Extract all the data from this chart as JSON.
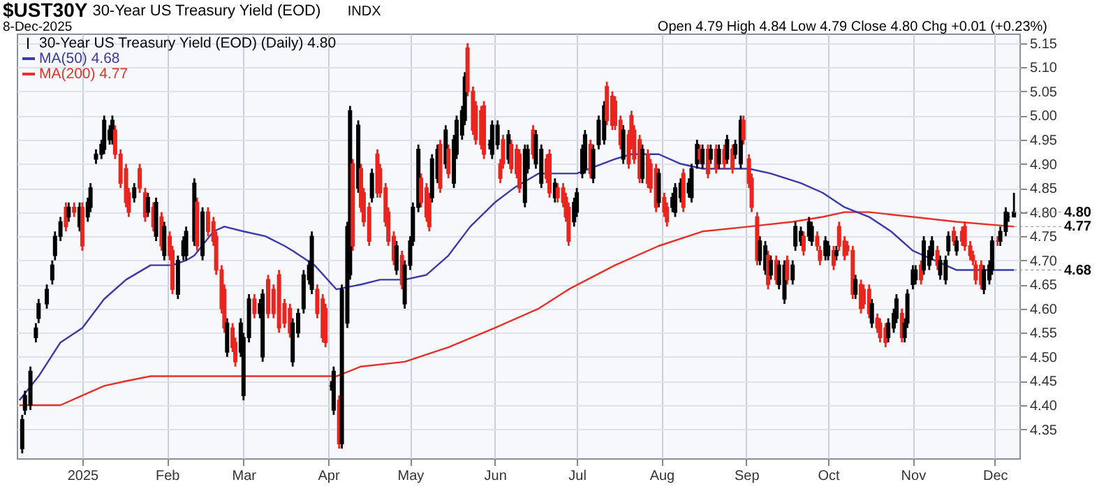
{
  "chart_data": {
    "type": "candlestick",
    "title": "$UST30Y",
    "subtitle": "30-Year US Treasury Yield (EOD)",
    "annotations": [
      "INDX",
      "8-Dec-2025",
      "Open 4.79 High 4.84 Low 4.79 Close 4.80 Chg +0.01 (+0.23%)",
      {
        "text": "4.80",
        "x": "2025-12-08",
        "y": 4.8
      },
      {
        "text": "4.77",
        "x": "2025-12-08",
        "y": 4.77
      },
      {
        "text": "4.68",
        "x": "2025-12-08",
        "y": 4.68
      }
    ],
    "xlim": [
      "2024-12-08",
      "2025-12-10"
    ],
    "xticks": [
      {
        "value": "2025-01-01",
        "label": "2025"
      },
      {
        "value": "2025-02-01",
        "label": "Feb"
      },
      {
        "value": "2025-03-01",
        "label": "Mar"
      },
      {
        "value": "2025-04-01",
        "label": "Apr"
      },
      {
        "value": "2025-05-01",
        "label": "May"
      },
      {
        "value": "2025-06-01",
        "label": "Jun"
      },
      {
        "value": "2025-07-01",
        "label": "Jul"
      },
      {
        "value": "2025-08-01",
        "label": "Aug"
      },
      {
        "value": "2025-09-01",
        "label": "Sep"
      },
      {
        "value": "2025-10-01",
        "label": "Oct"
      },
      {
        "value": "2025-11-01",
        "label": "Nov"
      },
      {
        "value": "2025-12-01",
        "label": "Dec"
      }
    ],
    "ylim": [
      4.29,
      5.17
    ],
    "yticks": [
      4.35,
      {
        "value": 4.4,
        "label": "4.40"
      },
      4.45,
      {
        "value": 4.5,
        "label": "4.50"
      },
      4.55,
      {
        "value": 4.6,
        "label": "4.60"
      },
      4.65,
      {
        "value": 4.7,
        "label": "4.70"
      },
      4.75,
      {
        "value": 4.8,
        "label": "4.80"
      },
      4.85,
      {
        "value": 4.9,
        "label": "4.90"
      },
      4.95,
      {
        "value": 5.0,
        "label": "5.00"
      },
      5.05,
      {
        "value": 5.1,
        "label": "5.10"
      },
      5.15
    ],
    "grid": true,
    "legend": "top left",
    "series": [
      {
        "name": "MA(200) 4.77",
        "type": "line",
        "color": "#e8302a",
        "x": [
          "2024-12-09",
          "2024-12-24",
          "2025-01-01",
          "2025-01-09",
          "2025-01-17",
          "2025-01-26",
          "2025-02-03",
          "2025-02-11",
          "2025-02-19",
          "2025-02-27",
          "2025-03-16",
          "2025-03-19",
          "2025-03-27",
          "2025-04-04",
          "2025-04-13",
          "2025-04-29",
          "2025-05-15",
          "2025-06-01",
          "2025-06-17",
          "2025-06-28",
          "2025-07-15",
          "2025-07-31",
          "2025-08-16",
          "2025-09-02",
          "2025-09-18",
          "2025-09-29",
          "2025-10-07",
          "2025-10-16",
          "2025-11-01",
          "2025-11-17",
          "2025-12-08"
        ],
        "values": [
          4.4,
          4.4,
          4.42,
          4.44,
          4.45,
          4.46,
          4.46,
          4.46,
          4.46,
          4.46,
          4.46,
          4.46,
          4.46,
          4.46,
          4.48,
          4.49,
          4.52,
          4.56,
          4.6,
          4.64,
          4.69,
          4.73,
          4.76,
          4.77,
          4.78,
          4.79,
          4.8,
          4.8,
          4.79,
          4.78,
          4.77
        ]
      },
      {
        "name": "MA(50) 4.68",
        "type": "line",
        "color": "#3a3aa8",
        "x": [
          "2024-12-09",
          "2024-12-16",
          "2024-12-24",
          "2025-01-01",
          "2025-01-09",
          "2025-01-17",
          "2025-01-26",
          "2025-02-03",
          "2025-02-08",
          "2025-02-11",
          "2025-02-18",
          "2025-02-22",
          "2025-03-01",
          "2025-03-09",
          "2025-03-16",
          "2025-03-19",
          "2025-03-27",
          "2025-04-04",
          "2025-04-13",
          "2025-04-20",
          "2025-04-29",
          "2025-05-07",
          "2025-05-15",
          "2025-05-23",
          "2025-06-01",
          "2025-06-08",
          "2025-06-17",
          "2025-07-01",
          "2025-07-15",
          "2025-07-21",
          "2025-07-31",
          "2025-08-08",
          "2025-08-16",
          "2025-08-24",
          "2025-09-02",
          "2025-09-10",
          "2025-09-21",
          "2025-09-29",
          "2025-10-07",
          "2025-10-16",
          "2025-10-24",
          "2025-11-01",
          "2025-11-09",
          "2025-11-17",
          "2025-11-25",
          "2025-12-08"
        ],
        "values": [
          4.41,
          4.46,
          4.53,
          4.56,
          4.62,
          4.66,
          4.69,
          4.69,
          4.7,
          4.71,
          4.76,
          4.77,
          4.76,
          4.75,
          4.73,
          4.72,
          4.69,
          4.64,
          4.65,
          4.66,
          4.66,
          4.67,
          4.71,
          4.77,
          4.82,
          4.85,
          4.88,
          4.88,
          4.91,
          4.92,
          4.92,
          4.9,
          4.89,
          4.89,
          4.89,
          4.88,
          4.86,
          4.84,
          4.81,
          4.79,
          4.76,
          4.72,
          4.7,
          4.68,
          4.68,
          4.68
        ]
      },
      {
        "name": "30-Year US Treasury Yield (EOD) (Daily) 4.80",
        "x": [
          "2024-12-10",
          "2024-12-11",
          "2024-12-13",
          "2024-12-15",
          "2024-12-16",
          "2024-12-19",
          "2024-12-21",
          "2024-12-22",
          "2024-12-24",
          "2024-12-26",
          "2024-12-27",
          "2024-12-29",
          "2024-12-31",
          "2025-01-01",
          "2025-01-03",
          "2025-01-04",
          "2025-01-06",
          "2025-01-08",
          "2025-01-09",
          "2025-01-11",
          "2025-01-12",
          "2025-01-13",
          "2025-01-15",
          "2025-01-17",
          "2025-01-18",
          "2025-01-20",
          "2025-01-22",
          "2025-01-24",
          "2025-01-25",
          "2025-01-27",
          "2025-01-28",
          "2025-01-30",
          "2025-01-31",
          "2025-02-02",
          "2025-02-03",
          "2025-02-05",
          "2025-02-07",
          "2025-02-08",
          "2025-02-11",
          "2025-02-12",
          "2025-02-14",
          "2025-02-16",
          "2025-02-18",
          "2025-02-19",
          "2025-02-21",
          "2025-02-22",
          "2025-02-23",
          "2025-02-25",
          "2025-02-26",
          "2025-02-28",
          "2025-03-01",
          "2025-03-03",
          "2025-03-05",
          "2025-03-07",
          "2025-03-08",
          "2025-03-10",
          "2025-03-12",
          "2025-03-14",
          "2025-03-16",
          "2025-03-18",
          "2025-03-19",
          "2025-03-21",
          "2025-03-23",
          "2025-03-25",
          "2025-03-26",
          "2025-03-28",
          "2025-03-30",
          "2025-03-31",
          "2025-04-02",
          "2025-04-03",
          "2025-04-05",
          "2025-04-06",
          "2025-04-08",
          "2025-04-09",
          "2025-04-10",
          "2025-04-12",
          "2025-04-13",
          "2025-04-14",
          "2025-04-16",
          "2025-04-17",
          "2025-04-19",
          "2025-04-20",
          "2025-04-22",
          "2025-04-23",
          "2025-04-25",
          "2025-04-26",
          "2025-04-28",
          "2025-04-29",
          "2025-05-01",
          "2025-05-02",
          "2025-05-04",
          "2025-05-05",
          "2025-05-07",
          "2025-05-08",
          "2025-05-09",
          "2025-05-11",
          "2025-05-12",
          "2025-05-14",
          "2025-05-15",
          "2025-05-17",
          "2025-05-18",
          "2025-05-20",
          "2025-05-21",
          "2025-05-22",
          "2025-05-24",
          "2025-05-25",
          "2025-05-27",
          "2025-05-28",
          "2025-05-30",
          "2025-05-31",
          "2025-06-02",
          "2025-06-03",
          "2025-06-04",
          "2025-06-06",
          "2025-06-07",
          "2025-06-09",
          "2025-06-10",
          "2025-06-12",
          "2025-06-13",
          "2025-06-15",
          "2025-06-16",
          "2025-06-18",
          "2025-06-20",
          "2025-06-21",
          "2025-06-23",
          "2025-06-24",
          "2025-06-26",
          "2025-06-27",
          "2025-06-28",
          "2025-06-30",
          "2025-07-01",
          "2025-07-03",
          "2025-07-04",
          "2025-07-06",
          "2025-07-07",
          "2025-07-09",
          "2025-07-11",
          "2025-07-12",
          "2025-07-14",
          "2025-07-15",
          "2025-07-17",
          "2025-07-18",
          "2025-07-20",
          "2025-07-21",
          "2025-07-22",
          "2025-07-24",
          "2025-07-25",
          "2025-07-27",
          "2025-07-28",
          "2025-07-30",
          "2025-07-31",
          "2025-08-02",
          "2025-08-03",
          "2025-08-05",
          "2025-08-06",
          "2025-08-08",
          "2025-08-09",
          "2025-08-11",
          "2025-08-12",
          "2025-08-14",
          "2025-08-15",
          "2025-08-16",
          "2025-08-18",
          "2025-08-19",
          "2025-08-21",
          "2025-08-22",
          "2025-08-24",
          "2025-08-25",
          "2025-08-27",
          "2025-08-28",
          "2025-08-30",
          "2025-08-31",
          "2025-09-02",
          "2025-09-03",
          "2025-09-05",
          "2025-09-06",
          "2025-09-08",
          "2025-09-09",
          "2025-09-10",
          "2025-09-12",
          "2025-09-13",
          "2025-09-15",
          "2025-09-16",
          "2025-09-18",
          "2025-09-19",
          "2025-09-21",
          "2025-09-22",
          "2025-09-24",
          "2025-09-25",
          "2025-09-27",
          "2025-09-28",
          "2025-09-30",
          "2025-10-01",
          "2025-10-03",
          "2025-10-04",
          "2025-10-05",
          "2025-10-07",
          "2025-10-08",
          "2025-10-10",
          "2025-10-11",
          "2025-10-13",
          "2025-10-14",
          "2025-10-16",
          "2025-10-17",
          "2025-10-19",
          "2025-10-20",
          "2025-10-22",
          "2025-10-23",
          "2025-10-25",
          "2025-10-26",
          "2025-10-28",
          "2025-10-29",
          "2025-10-30",
          "2025-11-01",
          "2025-11-02",
          "2025-11-04",
          "2025-11-05",
          "2025-11-07",
          "2025-11-08",
          "2025-11-10",
          "2025-11-11",
          "2025-11-13",
          "2025-11-14",
          "2025-11-16",
          "2025-11-17",
          "2025-11-19",
          "2025-11-20",
          "2025-11-22",
          "2025-11-23",
          "2025-11-24",
          "2025-11-26",
          "2025-11-27",
          "2025-11-29",
          "2025-11-30",
          "2025-12-02",
          "2025-12-03",
          "2025-12-05",
          "2025-12-06",
          "2025-12-08"
        ],
        "ohlc": [
          [
            4.31,
            4.38,
            4.3,
            4.37
          ],
          [
            4.39,
            4.43,
            4.38,
            4.42
          ],
          [
            4.4,
            4.48,
            4.39,
            4.47
          ],
          [
            4.54,
            4.57,
            4.53,
            4.56
          ],
          [
            4.58,
            4.62,
            4.57,
            4.61
          ],
          [
            4.61,
            4.65,
            4.6,
            4.64
          ],
          [
            4.66,
            4.7,
            4.65,
            4.69
          ],
          [
            4.71,
            4.76,
            4.7,
            4.75
          ],
          [
            4.75,
            4.79,
            4.74,
            4.78
          ],
          [
            4.81,
            4.82,
            4.76,
            4.77
          ],
          [
            4.79,
            4.82,
            4.78,
            4.81
          ],
          [
            4.81,
            4.82,
            4.79,
            4.8
          ],
          [
            4.77,
            4.82,
            4.76,
            4.81
          ],
          [
            4.81,
            4.82,
            4.72,
            4.73
          ],
          [
            4.79,
            4.83,
            4.78,
            4.82
          ],
          [
            4.81,
            4.86,
            4.8,
            4.85
          ],
          [
            4.91,
            4.93,
            4.9,
            4.92
          ],
          [
            4.92,
            4.95,
            4.91,
            4.94
          ],
          [
            4.93,
            5.0,
            4.92,
            4.99
          ],
          [
            4.95,
            4.98,
            4.94,
            4.97
          ],
          [
            4.95,
            5.0,
            4.94,
            4.99
          ],
          [
            4.97,
            4.98,
            4.91,
            4.92
          ],
          [
            4.92,
            4.93,
            4.85,
            4.86
          ],
          [
            4.89,
            4.9,
            4.81,
            4.82
          ],
          [
            4.84,
            4.85,
            4.79,
            4.8
          ],
          [
            4.83,
            4.86,
            4.82,
            4.85
          ],
          [
            4.89,
            4.9,
            4.84,
            4.85
          ],
          [
            4.84,
            4.85,
            4.78,
            4.79
          ],
          [
            4.8,
            4.84,
            4.79,
            4.83
          ],
          [
            4.81,
            4.82,
            4.76,
            4.77
          ],
          [
            4.75,
            4.83,
            4.74,
            4.82
          ],
          [
            4.79,
            4.8,
            4.72,
            4.73
          ],
          [
            4.71,
            4.78,
            4.7,
            4.77
          ],
          [
            4.75,
            4.76,
            4.7,
            4.71
          ],
          [
            4.72,
            4.73,
            4.63,
            4.64
          ],
          [
            4.63,
            4.71,
            4.62,
            4.7
          ],
          [
            4.71,
            4.75,
            4.7,
            4.74
          ],
          [
            4.71,
            4.77,
            4.7,
            4.76
          ],
          [
            4.74,
            4.87,
            4.73,
            4.86
          ],
          [
            4.82,
            4.83,
            4.72,
            4.73
          ],
          [
            4.71,
            4.81,
            4.7,
            4.8
          ],
          [
            4.8,
            4.81,
            4.75,
            4.76
          ],
          [
            4.78,
            4.79,
            4.73,
            4.74
          ],
          [
            4.75,
            4.76,
            4.67,
            4.68
          ],
          [
            4.68,
            4.69,
            4.59,
            4.6
          ],
          [
            4.64,
            4.65,
            4.55,
            4.56
          ],
          [
            4.51,
            4.58,
            4.5,
            4.57
          ],
          [
            4.56,
            4.57,
            4.51,
            4.52
          ],
          [
            4.53,
            4.54,
            4.48,
            4.49
          ],
          [
            4.51,
            4.58,
            4.5,
            4.57
          ],
          [
            4.42,
            4.55,
            4.41,
            4.54
          ],
          [
            4.54,
            4.63,
            4.53,
            4.62
          ],
          [
            4.62,
            4.63,
            4.58,
            4.59
          ],
          [
            4.59,
            4.62,
            4.58,
            4.61
          ],
          [
            4.5,
            4.64,
            4.49,
            4.63
          ],
          [
            4.66,
            4.67,
            4.58,
            4.59
          ],
          [
            4.64,
            4.65,
            4.58,
            4.59
          ],
          [
            4.67,
            4.68,
            4.55,
            4.56
          ],
          [
            4.61,
            4.62,
            4.56,
            4.57
          ],
          [
            4.6,
            4.61,
            4.54,
            4.55
          ],
          [
            4.49,
            4.58,
            4.48,
            4.57
          ],
          [
            4.55,
            4.6,
            4.54,
            4.59
          ],
          [
            4.6,
            4.68,
            4.59,
            4.67
          ],
          [
            4.66,
            4.7,
            4.65,
            4.69
          ],
          [
            4.64,
            4.76,
            4.63,
            4.75
          ],
          [
            4.64,
            4.65,
            4.58,
            4.59
          ],
          [
            4.62,
            4.63,
            4.53,
            4.54
          ],
          [
            4.6,
            4.61,
            4.52,
            4.53
          ],
          [
            4.44,
            4.45,
            4.43,
            4.44
          ],
          [
            4.39,
            4.48,
            4.38,
            4.47
          ],
          [
            4.41,
            4.42,
            4.31,
            4.32
          ],
          [
            4.32,
            4.65,
            4.31,
            4.64
          ],
          [
            4.57,
            4.78,
            4.56,
            4.77
          ],
          [
            4.67,
            5.02,
            4.66,
            5.01
          ],
          [
            4.9,
            4.91,
            4.72,
            4.73
          ],
          [
            4.85,
            4.99,
            4.84,
            4.98
          ],
          [
            4.89,
            4.9,
            4.8,
            4.81
          ],
          [
            4.84,
            4.85,
            4.77,
            4.78
          ],
          [
            4.81,
            4.82,
            4.73,
            4.74
          ],
          [
            4.83,
            4.89,
            4.82,
            4.88
          ],
          [
            4.92,
            4.93,
            4.83,
            4.84
          ],
          [
            4.89,
            4.9,
            4.83,
            4.84
          ],
          [
            4.85,
            4.86,
            4.77,
            4.78
          ],
          [
            4.8,
            4.81,
            4.73,
            4.74
          ],
          [
            4.75,
            4.76,
            4.69,
            4.7
          ],
          [
            4.68,
            4.74,
            4.67,
            4.73
          ],
          [
            4.71,
            4.72,
            4.64,
            4.65
          ],
          [
            4.61,
            4.7,
            4.6,
            4.69
          ],
          [
            4.69,
            4.75,
            4.68,
            4.74
          ],
          [
            4.74,
            4.82,
            4.73,
            4.81
          ],
          [
            4.81,
            4.94,
            4.8,
            4.93
          ],
          [
            4.87,
            4.88,
            4.81,
            4.82
          ],
          [
            4.85,
            4.86,
            4.78,
            4.79
          ],
          [
            4.83,
            4.84,
            4.76,
            4.77
          ],
          [
            4.83,
            4.92,
            4.82,
            4.91
          ],
          [
            4.87,
            4.94,
            4.86,
            4.93
          ],
          [
            4.94,
            4.95,
            4.84,
            4.85
          ],
          [
            4.9,
            4.98,
            4.89,
            4.97
          ],
          [
            4.93,
            4.94,
            4.87,
            4.88
          ],
          [
            4.86,
            4.96,
            4.85,
            4.95
          ],
          [
            4.92,
            5.0,
            4.91,
            4.99
          ],
          [
            4.96,
            5.02,
            4.95,
            5.01
          ],
          [
            4.99,
            5.09,
            4.98,
            5.08
          ],
          [
            5.14,
            5.15,
            5.04,
            5.05
          ],
          [
            5.05,
            5.06,
            4.96,
            4.97
          ],
          [
            5.02,
            5.03,
            4.94,
            4.95
          ],
          [
            5.01,
            5.02,
            4.93,
            4.94
          ],
          [
            5.02,
            5.03,
            4.91,
            4.92
          ],
          [
            4.94,
            4.95,
            4.93,
            4.94
          ],
          [
            4.92,
            4.99,
            4.91,
            4.98
          ],
          [
            4.94,
            4.99,
            4.93,
            4.98
          ],
          [
            4.9,
            4.91,
            4.86,
            4.87
          ],
          [
            4.95,
            4.96,
            4.89,
            4.9
          ],
          [
            4.91,
            4.97,
            4.9,
            4.96
          ],
          [
            4.94,
            4.95,
            4.88,
            4.89
          ],
          [
            4.93,
            4.94,
            4.87,
            4.88
          ],
          [
            4.92,
            4.93,
            4.84,
            4.85
          ],
          [
            4.82,
            4.94,
            4.81,
            4.93
          ],
          [
            4.89,
            4.94,
            4.88,
            4.93
          ],
          [
            4.97,
            4.98,
            4.91,
            4.92
          ],
          [
            4.9,
            4.97,
            4.89,
            4.96
          ],
          [
            4.86,
            4.94,
            4.85,
            4.93
          ],
          [
            4.91,
            4.92,
            4.86,
            4.87
          ],
          [
            4.92,
            4.93,
            4.83,
            4.84
          ],
          [
            4.83,
            4.87,
            4.82,
            4.86
          ],
          [
            4.85,
            4.86,
            4.82,
            4.83
          ],
          [
            4.85,
            4.86,
            4.81,
            4.82
          ],
          [
            4.83,
            4.84,
            4.78,
            4.79
          ],
          [
            4.81,
            4.82,
            4.73,
            4.74
          ],
          [
            4.78,
            4.83,
            4.77,
            4.82
          ],
          [
            4.8,
            4.85,
            4.79,
            4.84
          ],
          [
            4.88,
            4.94,
            4.87,
            4.93
          ],
          [
            4.89,
            4.97,
            4.88,
            4.96
          ],
          [
            4.94,
            4.95,
            4.87,
            4.88
          ],
          [
            4.87,
            4.94,
            4.86,
            4.93
          ],
          [
            4.94,
            5.0,
            4.93,
            4.99
          ],
          [
            4.95,
            5.03,
            4.94,
            5.02
          ],
          [
            5.06,
            5.07,
            4.98,
            4.99
          ],
          [
            5.04,
            5.05,
            4.97,
            4.98
          ],
          [
            5.03,
            5.04,
            4.97,
            4.98
          ],
          [
            4.99,
            5.0,
            4.93,
            4.94
          ],
          [
            4.91,
            4.98,
            4.9,
            4.97
          ],
          [
            4.96,
            4.97,
            4.89,
            4.9
          ],
          [
            5.0,
            5.01,
            4.93,
            4.94
          ],
          [
            4.97,
            4.98,
            4.9,
            4.91
          ],
          [
            4.95,
            4.96,
            4.86,
            4.87
          ],
          [
            4.87,
            4.94,
            4.86,
            4.93
          ],
          [
            4.92,
            4.93,
            4.85,
            4.86
          ],
          [
            4.9,
            4.91,
            4.84,
            4.85
          ],
          [
            4.89,
            4.9,
            4.8,
            4.81
          ],
          [
            4.82,
            4.89,
            4.81,
            4.88
          ],
          [
            4.83,
            4.84,
            4.79,
            4.8
          ],
          [
            4.81,
            4.82,
            4.77,
            4.78
          ],
          [
            4.81,
            4.84,
            4.8,
            4.83
          ],
          [
            4.8,
            4.86,
            4.79,
            4.85
          ],
          [
            4.83,
            4.87,
            4.82,
            4.86
          ],
          [
            4.88,
            4.89,
            4.8,
            4.81
          ],
          [
            4.84,
            4.87,
            4.83,
            4.86
          ],
          [
            4.83,
            4.9,
            4.82,
            4.89
          ],
          [
            4.9,
            4.95,
            4.89,
            4.94
          ],
          [
            4.93,
            4.94,
            4.9,
            4.91
          ],
          [
            4.9,
            4.94,
            4.89,
            4.93
          ],
          [
            4.93,
            4.94,
            4.87,
            4.88
          ],
          [
            4.91,
            4.94,
            4.9,
            4.93
          ],
          [
            4.93,
            4.94,
            4.88,
            4.89
          ],
          [
            4.9,
            4.94,
            4.89,
            4.93
          ],
          [
            4.93,
            4.94,
            4.89,
            4.9
          ],
          [
            4.91,
            4.96,
            4.9,
            4.95
          ],
          [
            4.93,
            4.94,
            4.88,
            4.89
          ],
          [
            4.92,
            4.95,
            4.91,
            4.94
          ],
          [
            4.9,
            5.0,
            4.89,
            4.99
          ],
          [
            4.99,
            5.0,
            4.94,
            4.95
          ],
          [
            4.91,
            4.92,
            4.85,
            4.86
          ],
          [
            4.87,
            4.88,
            4.8,
            4.81
          ],
          [
            4.79,
            4.8,
            4.69,
            4.7
          ],
          [
            4.7,
            4.75,
            4.69,
            4.74
          ],
          [
            4.68,
            4.74,
            4.67,
            4.73
          ],
          [
            4.71,
            4.72,
            4.64,
            4.65
          ],
          [
            4.67,
            4.71,
            4.66,
            4.7
          ],
          [
            4.7,
            4.71,
            4.65,
            4.66
          ],
          [
            4.65,
            4.7,
            4.64,
            4.69
          ],
          [
            4.62,
            4.7,
            4.61,
            4.69
          ],
          [
            4.7,
            4.71,
            4.65,
            4.66
          ],
          [
            4.66,
            4.7,
            4.65,
            4.69
          ],
          [
            4.73,
            4.78,
            4.72,
            4.77
          ],
          [
            4.74,
            4.77,
            4.73,
            4.76
          ],
          [
            4.75,
            4.76,
            4.71,
            4.72
          ],
          [
            4.75,
            4.79,
            4.74,
            4.78
          ],
          [
            4.74,
            4.78,
            4.73,
            4.77
          ],
          [
            4.75,
            4.76,
            4.72,
            4.73
          ],
          [
            4.72,
            4.73,
            4.69,
            4.7
          ],
          [
            4.71,
            4.75,
            4.7,
            4.74
          ],
          [
            4.71,
            4.74,
            4.7,
            4.73
          ],
          [
            4.72,
            4.73,
            4.68,
            4.69
          ],
          [
            4.71,
            4.73,
            4.7,
            4.72
          ],
          [
            4.77,
            4.78,
            4.72,
            4.73
          ],
          [
            4.74,
            4.75,
            4.7,
            4.71
          ],
          [
            4.73,
            4.74,
            4.71,
            4.72
          ],
          [
            4.72,
            4.73,
            4.62,
            4.63
          ],
          [
            4.63,
            4.67,
            4.62,
            4.66
          ],
          [
            4.65,
            4.66,
            4.59,
            4.6
          ],
          [
            4.64,
            4.65,
            4.6,
            4.61
          ],
          [
            4.64,
            4.65,
            4.58,
            4.59
          ],
          [
            4.57,
            4.62,
            4.56,
            4.61
          ],
          [
            4.58,
            4.59,
            4.55,
            4.56
          ],
          [
            4.57,
            4.58,
            4.53,
            4.54
          ],
          [
            4.56,
            4.57,
            4.52,
            4.53
          ],
          [
            4.54,
            4.58,
            4.53,
            4.57
          ],
          [
            4.56,
            4.6,
            4.55,
            4.59
          ],
          [
            4.58,
            4.63,
            4.57,
            4.62
          ],
          [
            4.59,
            4.6,
            4.53,
            4.54
          ],
          [
            4.54,
            4.58,
            4.53,
            4.57
          ],
          [
            4.57,
            4.64,
            4.56,
            4.63
          ],
          [
            4.65,
            4.69,
            4.64,
            4.68
          ],
          [
            4.66,
            4.69,
            4.65,
            4.68
          ],
          [
            4.69,
            4.7,
            4.65,
            4.66
          ],
          [
            4.68,
            4.75,
            4.67,
            4.74
          ],
          [
            4.69,
            4.73,
            4.68,
            4.72
          ],
          [
            4.71,
            4.75,
            4.7,
            4.74
          ],
          [
            4.72,
            4.73,
            4.68,
            4.69
          ],
          [
            4.67,
            4.71,
            4.66,
            4.7
          ],
          [
            4.66,
            4.71,
            4.65,
            4.7
          ],
          [
            4.72,
            4.76,
            4.71,
            4.75
          ],
          [
            4.76,
            4.77,
            4.73,
            4.74
          ],
          [
            4.72,
            4.75,
            4.71,
            4.74
          ],
          [
            4.76,
            4.77,
            4.73,
            4.74
          ],
          [
            4.77,
            4.78,
            4.72,
            4.73
          ],
          [
            4.73,
            4.74,
            4.7,
            4.71
          ],
          [
            4.71,
            4.72,
            4.69,
            4.7
          ],
          [
            4.69,
            4.7,
            4.65,
            4.66
          ],
          [
            4.69,
            4.7,
            4.64,
            4.65
          ],
          [
            4.64,
            4.69,
            4.63,
            4.68
          ],
          [
            4.66,
            4.7,
            4.65,
            4.69
          ],
          [
            4.68,
            4.75,
            4.67,
            4.74
          ],
          [
            4.74,
            4.75,
            4.73,
            4.74
          ],
          [
            4.74,
            4.77,
            4.73,
            4.76
          ],
          [
            4.76,
            4.81,
            4.75,
            4.8
          ],
          [
            4.79,
            4.8,
            4.78,
            4.79
          ],
          [
            4.79,
            4.84,
            4.79,
            4.8
          ]
        ],
        "colors": [
          "#000000",
          "#000000",
          "#000000",
          "#000000",
          "#000000",
          "#000000",
          "#000000",
          "#000000",
          "#000000",
          "#e8251f",
          "#000000",
          "#e8251f",
          "#000000",
          "#e8251f",
          "#000000",
          "#000000",
          "#000000",
          "#000000",
          "#000000",
          "#000000",
          "#000000",
          "#e8251f",
          "#e8251f",
          "#e8251f",
          "#e8251f",
          "#000000",
          "#e8251f",
          "#e8251f",
          "#000000",
          "#e8251f",
          "#000000",
          "#e8251f",
          "#000000",
          "#e8251f",
          "#e8251f",
          "#000000",
          "#000000",
          "#000000",
          "#000000",
          "#e8251f",
          "#000000",
          "#e8251f",
          "#e8251f",
          "#e8251f",
          "#e8251f",
          "#e8251f",
          "#000000",
          "#e8251f",
          "#e8251f",
          "#000000",
          "#000000",
          "#000000",
          "#e8251f",
          "#000000",
          "#000000",
          "#e8251f",
          "#e8251f",
          "#e8251f",
          "#e8251f",
          "#e8251f",
          "#000000",
          "#000000",
          "#000000",
          "#000000",
          "#000000",
          "#e8251f",
          "#e8251f",
          "#e8251f",
          "#000000",
          "#000000",
          "#e8251f",
          "#000000",
          "#000000",
          "#000000",
          "#e8251f",
          "#000000",
          "#e8251f",
          "#e8251f",
          "#e8251f",
          "#000000",
          "#e8251f",
          "#e8251f",
          "#e8251f",
          "#e8251f",
          "#e8251f",
          "#000000",
          "#e8251f",
          "#000000",
          "#000000",
          "#000000",
          "#000000",
          "#e8251f",
          "#e8251f",
          "#e8251f",
          "#000000",
          "#000000",
          "#e8251f",
          "#000000",
          "#e8251f",
          "#000000",
          "#000000",
          "#000000",
          "#000000",
          "#e8251f",
          "#e8251f",
          "#e8251f",
          "#e8251f",
          "#e8251f",
          "#000000",
          "#000000",
          "#000000",
          "#e8251f",
          "#e8251f",
          "#000000",
          "#e8251f",
          "#e8251f",
          "#e8251f",
          "#000000",
          "#000000",
          "#e8251f",
          "#000000",
          "#000000",
          "#e8251f",
          "#e8251f",
          "#000000",
          "#e8251f",
          "#e8251f",
          "#e8251f",
          "#e8251f",
          "#000000",
          "#000000",
          "#000000",
          "#000000",
          "#e8251f",
          "#000000",
          "#000000",
          "#000000",
          "#e8251f",
          "#e8251f",
          "#e8251f",
          "#e8251f",
          "#000000",
          "#e8251f",
          "#e8251f",
          "#e8251f",
          "#e8251f",
          "#000000",
          "#e8251f",
          "#e8251f",
          "#e8251f",
          "#000000",
          "#e8251f",
          "#e8251f",
          "#000000",
          "#000000",
          "#000000",
          "#e8251f",
          "#000000",
          "#000000",
          "#000000",
          "#e8251f",
          "#000000",
          "#e8251f",
          "#000000",
          "#e8251f",
          "#000000",
          "#e8251f",
          "#000000",
          "#e8251f",
          "#000000",
          "#000000",
          "#e8251f",
          "#e8251f",
          "#e8251f",
          "#e8251f",
          "#000000",
          "#000000",
          "#e8251f",
          "#000000",
          "#e8251f",
          "#000000",
          "#000000",
          "#e8251f",
          "#000000",
          "#000000",
          "#000000",
          "#e8251f",
          "#000000",
          "#000000",
          "#e8251f",
          "#e8251f",
          "#000000",
          "#000000",
          "#e8251f",
          "#000000",
          "#e8251f",
          "#e8251f",
          "#e8251f",
          "#e8251f",
          "#000000",
          "#e8251f",
          "#e8251f",
          "#e8251f",
          "#000000",
          "#e8251f",
          "#e8251f",
          "#e8251f",
          "#000000",
          "#000000",
          "#000000",
          "#e8251f",
          "#000000",
          "#000000",
          "#000000",
          "#000000",
          "#e8251f",
          "#000000",
          "#000000",
          "#000000",
          "#e8251f",
          "#000000",
          "#000000",
          "#000000",
          "#e8251f",
          "#000000",
          "#e8251f",
          "#e8251f",
          "#e8251f",
          "#e8251f",
          "#e8251f",
          "#e8251f",
          "#000000",
          "#000000",
          "#000000",
          "#e8251f",
          "#000000",
          "#000000",
          "#000000",
          "#000000"
        ]
      }
    ]
  }
}
